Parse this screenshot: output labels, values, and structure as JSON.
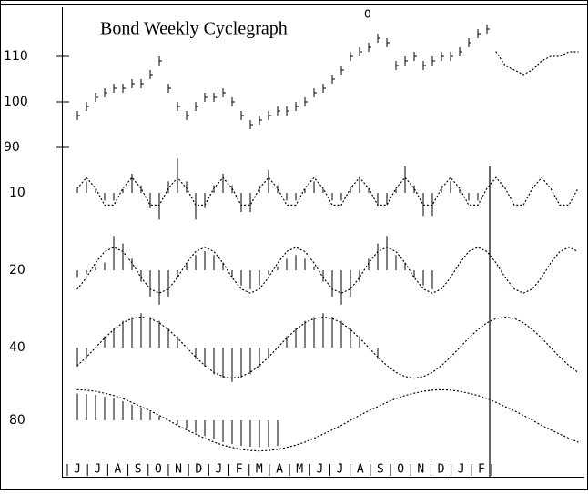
{
  "chart_data": {
    "type": "cyclegraph",
    "title": "Bond Weekly Cyclegraph",
    "annotation": "0",
    "months": [
      "J",
      "J",
      "A",
      "S",
      "O",
      "N",
      "D",
      "J",
      "F",
      "M",
      "A",
      "M",
      "J",
      "J",
      "A",
      "S",
      "O",
      "N",
      "D",
      "J",
      "F"
    ],
    "x": [
      0,
      1,
      2,
      3,
      4,
      5,
      6,
      7,
      8,
      9,
      10,
      11,
      12,
      13,
      14,
      15,
      16,
      17,
      18,
      19,
      20,
      21,
      22,
      23,
      24,
      25,
      26,
      27,
      28,
      29,
      30,
      31,
      32,
      33,
      34,
      35,
      36,
      37,
      38,
      39,
      40,
      41,
      42,
      43,
      44,
      45,
      46,
      47,
      48,
      49,
      50,
      51,
      52,
      53,
      54,
      55
    ],
    "xlim": [
      0,
      55
    ],
    "price": {
      "values": [
        97,
        99,
        101,
        102,
        103,
        103,
        104,
        104,
        106,
        109,
        103,
        99,
        97,
        99,
        101,
        101,
        102,
        100,
        97,
        95,
        96,
        97,
        98,
        98,
        99,
        100,
        102,
        103,
        105,
        107,
        110,
        111,
        112,
        114,
        113,
        108,
        109,
        110,
        108,
        109,
        110,
        110,
        111,
        113,
        115,
        116,
        null,
        null,
        null,
        null,
        null,
        null,
        null,
        null,
        null,
        null
      ],
      "projection": [
        null,
        null,
        null,
        null,
        null,
        null,
        null,
        null,
        null,
        null,
        null,
        null,
        null,
        null,
        null,
        null,
        null,
        null,
        null,
        null,
        null,
        null,
        null,
        null,
        null,
        null,
        null,
        null,
        null,
        null,
        null,
        null,
        null,
        null,
        null,
        null,
        null,
        null,
        null,
        null,
        null,
        null,
        null,
        null,
        null,
        null,
        111,
        108,
        107,
        106,
        107,
        109,
        110,
        110,
        111,
        111
      ],
      "ylim": [
        86,
        116
      ],
      "yticks": [
        90,
        100,
        110
      ]
    },
    "cycle_ylim": [
      -1,
      1
    ],
    "cycles": [
      {
        "name": "10",
        "values": [
          0.1,
          0.3,
          0.1,
          -0.2,
          -0.2,
          0.1,
          0.5,
          0.2,
          -0.4,
          -0.7,
          0.3,
          0.9,
          0.3,
          -0.7,
          -0.4,
          0.2,
          0.5,
          0.2,
          -0.5,
          -0.5,
          0.2,
          0.6,
          0.2,
          -0.2,
          -0.2,
          0.1,
          0.3,
          0.1,
          -0.2,
          -0.2,
          0.1,
          0.4,
          0.1,
          -0.3,
          -0.3,
          0.1,
          0.7,
          0.2,
          -0.6,
          -0.6,
          0.2,
          0.3,
          0.1,
          -0.2,
          -0.2,
          null,
          null,
          null,
          null,
          null,
          null,
          null,
          null,
          null,
          null,
          null
        ],
        "wave": [
          0.12,
          0.4,
          0.12,
          -0.32,
          -0.32,
          0.12,
          0.4,
          0.12,
          -0.32,
          -0.32,
          0.12,
          0.4,
          0.12,
          -0.32,
          -0.32,
          0.12,
          0.4,
          0.12,
          -0.32,
          -0.32,
          0.12,
          0.4,
          0.12,
          -0.32,
          -0.32,
          0.12,
          0.4,
          0.12,
          -0.32,
          -0.32,
          0.12,
          0.4,
          0.12,
          -0.32,
          -0.32,
          0.12,
          0.4,
          0.12,
          -0.32,
          -0.32,
          0.12,
          0.4,
          0.12,
          -0.32,
          -0.32,
          0.12,
          0.4,
          0.12,
          -0.32,
          -0.32,
          0.12,
          0.4,
          0.12,
          -0.32,
          -0.32,
          0.12
        ]
      },
      {
        "name": "20",
        "values": [
          -0.2,
          -0.1,
          0.1,
          0.2,
          0.9,
          0.7,
          0.3,
          -0.3,
          -0.7,
          -0.9,
          -0.7,
          -0.2,
          0.2,
          0.4,
          0.5,
          0.4,
          0.2,
          -0.2,
          -0.4,
          -0.5,
          -0.4,
          -0.1,
          0.1,
          0.3,
          0.4,
          0.3,
          0.1,
          -0.3,
          -0.7,
          -0.9,
          -0.7,
          -0.3,
          0.3,
          0.7,
          0.9,
          0.4,
          0.2,
          -0.2,
          -0.4,
          -0.5,
          null,
          null,
          null,
          null,
          null,
          null,
          null,
          null,
          null,
          null,
          null,
          null,
          null,
          null,
          null,
          null
        ],
        "wave": [
          -0.49,
          -0.19,
          0.19,
          0.49,
          0.6,
          0.49,
          0.19,
          -0.19,
          -0.49,
          -0.6,
          -0.49,
          -0.19,
          0.19,
          0.49,
          0.6,
          0.49,
          0.19,
          -0.19,
          -0.49,
          -0.6,
          -0.49,
          -0.19,
          0.19,
          0.49,
          0.6,
          0.49,
          0.19,
          -0.19,
          -0.49,
          -0.6,
          -0.49,
          -0.19,
          0.19,
          0.49,
          0.6,
          0.49,
          0.19,
          -0.19,
          -0.49,
          -0.6,
          -0.49,
          -0.19,
          0.19,
          0.49,
          0.6,
          0.49,
          0.19,
          -0.19,
          -0.49,
          -0.6,
          -0.49,
          -0.19,
          0.19,
          0.49,
          0.6,
          0.49
        ]
      },
      {
        "name": "40",
        "values": [
          -0.5,
          -0.3,
          0,
          0.3,
          0.5,
          0.7,
          0.8,
          0.9,
          0.8,
          0.7,
          0.5,
          0.3,
          0,
          -0.3,
          -0.5,
          -0.7,
          -0.8,
          -0.9,
          -0.8,
          -0.7,
          -0.5,
          -0.3,
          0,
          0.3,
          0.5,
          0.7,
          0.8,
          0.9,
          0.8,
          0.7,
          0.5,
          0.3,
          0,
          -0.3,
          null,
          null,
          null,
          null,
          null,
          null,
          null,
          null,
          null,
          null,
          null,
          null,
          null,
          null,
          null,
          null,
          null,
          null,
          null,
          null,
          null,
          null
        ],
        "wave": [
          -0.47,
          -0.25,
          0,
          0.25,
          0.47,
          0.65,
          0.76,
          0.8,
          0.76,
          0.65,
          0.47,
          0.25,
          0,
          -0.25,
          -0.47,
          -0.65,
          -0.76,
          -0.8,
          -0.76,
          -0.65,
          -0.47,
          -0.25,
          0,
          0.25,
          0.47,
          0.65,
          0.76,
          0.8,
          0.76,
          0.65,
          0.47,
          0.25,
          0,
          -0.25,
          -0.47,
          -0.65,
          -0.76,
          -0.8,
          -0.76,
          -0.65,
          -0.47,
          -0.25,
          0,
          0.25,
          0.47,
          0.65,
          0.76,
          0.8,
          0.76,
          0.65,
          0.47,
          0.25,
          0,
          -0.25,
          -0.47,
          -0.65
        ]
      },
      {
        "name": "80",
        "values": [
          0.7,
          0.69,
          0.67,
          0.62,
          0.57,
          0.5,
          0.41,
          0.32,
          0.22,
          0.11,
          0,
          -0.11,
          -0.22,
          -0.32,
          -0.41,
          -0.5,
          -0.57,
          -0.62,
          -0.67,
          -0.69,
          -0.7,
          -0.69,
          -0.67,
          null,
          null,
          null,
          null,
          null,
          null,
          null,
          null,
          null,
          null,
          null,
          null,
          null,
          null,
          null,
          null,
          null,
          null,
          null,
          null,
          null,
          null,
          null,
          null,
          null,
          null,
          null,
          null,
          null,
          null,
          null,
          null,
          null
        ],
        "wave": [
          0.8,
          0.79,
          0.76,
          0.71,
          0.65,
          0.57,
          0.47,
          0.36,
          0.25,
          0.13,
          0,
          -0.13,
          -0.25,
          -0.36,
          -0.47,
          -0.57,
          -0.65,
          -0.71,
          -0.76,
          -0.79,
          -0.8,
          -0.79,
          -0.76,
          -0.71,
          -0.65,
          -0.57,
          -0.47,
          -0.36,
          -0.25,
          -0.13,
          0,
          0.13,
          0.25,
          0.36,
          0.47,
          0.57,
          0.65,
          0.71,
          0.76,
          0.79,
          0.8,
          0.79,
          0.76,
          0.71,
          0.65,
          0.57,
          0.47,
          0.36,
          0.25,
          0.13,
          0,
          -0.13,
          -0.25,
          -0.36,
          -0.47,
          -0.57
        ]
      }
    ]
  }
}
